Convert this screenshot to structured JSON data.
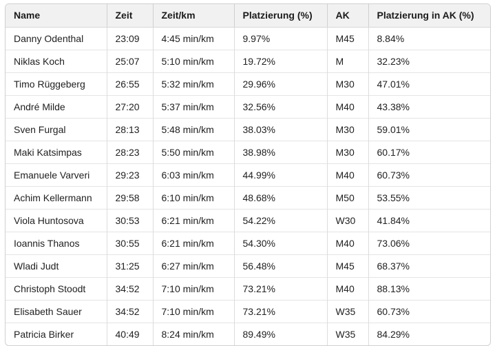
{
  "table": {
    "columns": [
      {
        "key": "name",
        "label": "Name"
      },
      {
        "key": "zeit",
        "label": "Zeit"
      },
      {
        "key": "zeit_km",
        "label": "Zeit/km"
      },
      {
        "key": "platzierung",
        "label": "Platzierung (%)"
      },
      {
        "key": "ak",
        "label": "AK"
      },
      {
        "key": "platzierung_ak",
        "label": "Platzierung in AK (%)"
      }
    ],
    "rows": [
      [
        "Danny Odenthal",
        "23:09",
        "4:45 min/km",
        "9.97%",
        "M45",
        "8.84%"
      ],
      [
        "Niklas Koch",
        "25:07",
        "5:10 min/km",
        "19.72%",
        "M",
        "32.23%"
      ],
      [
        "Timo Rüggeberg",
        "26:55",
        "5:32 min/km",
        "29.96%",
        "M30",
        "47.01%"
      ],
      [
        "André Milde",
        "27:20",
        "5:37 min/km",
        "32.56%",
        "M40",
        "43.38%"
      ],
      [
        "Sven Furgal",
        "28:13",
        "5:48 min/km",
        "38.03%",
        "M30",
        "59.01%"
      ],
      [
        "Maki Katsimpas",
        "28:23",
        "5:50 min/km",
        "38.98%",
        "M30",
        "60.17%"
      ],
      [
        "Emanuele Varveri",
        "29:23",
        "6:03 min/km",
        "44.99%",
        "M40",
        "60.73%"
      ],
      [
        "Achim Kellermann",
        "29:58",
        "6:10 min/km",
        "48.68%",
        "M50",
        "53.55%"
      ],
      [
        "Viola Huntosova",
        "30:53",
        "6:21 min/km",
        "54.22%",
        "W30",
        "41.84%"
      ],
      [
        "Ioannis Thanos",
        "30:55",
        "6:21 min/km",
        "54.30%",
        "M40",
        "73.06%"
      ],
      [
        "Wladi Judt",
        "31:25",
        "6:27 min/km",
        "56.48%",
        "M45",
        "68.37%"
      ],
      [
        "Christoph Stoodt",
        "34:52",
        "7:10 min/km",
        "73.21%",
        "M40",
        "88.13%"
      ],
      [
        "Elisabeth Sauer",
        "34:52",
        "7:10 min/km",
        "73.21%",
        "W35",
        "60.73%"
      ],
      [
        "Patricia Birker",
        "40:49",
        "8:24 min/km",
        "89.49%",
        "W35",
        "84.29%"
      ]
    ]
  },
  "colors": {
    "header_bg": "#f1f1f1",
    "outer_border": "#d0d0d0",
    "column_border": "#dcdcdc",
    "row_border": "#e4e4e4",
    "text": "#212121"
  }
}
